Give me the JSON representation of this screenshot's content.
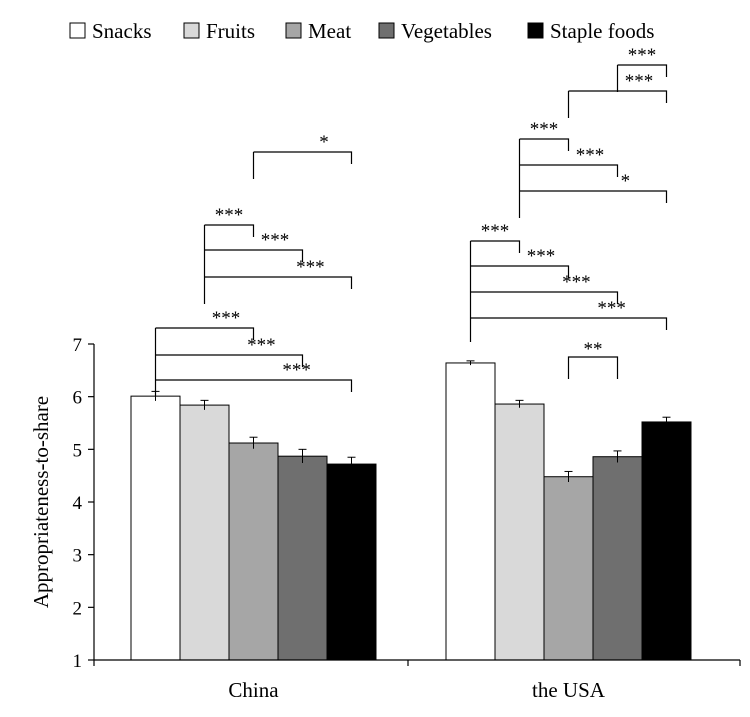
{
  "chart_data": {
    "type": "bar",
    "ylabel": "Appropriateness-to-share",
    "ylim": [
      1,
      7
    ],
    "yticks": [
      1,
      2,
      3,
      4,
      5,
      6,
      7
    ],
    "grid": false,
    "legend_position": "top",
    "categories": [
      "China",
      "the USA"
    ],
    "series": [
      {
        "name": "Snacks",
        "color": "#ffffff",
        "values": [
          6.01,
          6.64
        ],
        "errors": [
          0.09,
          0.04
        ]
      },
      {
        "name": "Fruits",
        "color": "#d9d9d9",
        "values": [
          5.84,
          5.86
        ],
        "errors": [
          0.09,
          0.07
        ]
      },
      {
        "name": "Meat",
        "color": "#a6a6a6",
        "values": [
          5.12,
          4.48
        ],
        "errors": [
          0.11,
          0.1
        ]
      },
      {
        "name": "Vegetables",
        "color": "#6f6f6f",
        "values": [
          4.87,
          4.86
        ],
        "errors": [
          0.13,
          0.11
        ]
      },
      {
        "name": "Staple foods",
        "color": "#000000",
        "values": [
          4.72,
          5.52
        ],
        "errors": [
          0.13,
          0.09
        ]
      }
    ],
    "significance": [
      {
        "group": 0,
        "from": 0,
        "to": 2,
        "label": "***"
      },
      {
        "group": 0,
        "from": 0,
        "to": 3,
        "label": "***"
      },
      {
        "group": 0,
        "from": 0,
        "to": 4,
        "label": "***"
      },
      {
        "group": 0,
        "from": 1,
        "to": 2,
        "label": "***"
      },
      {
        "group": 0,
        "from": 1,
        "to": 3,
        "label": "***"
      },
      {
        "group": 0,
        "from": 1,
        "to": 4,
        "label": "***"
      },
      {
        "group": 0,
        "from": 2,
        "to": 4,
        "label": "*"
      },
      {
        "group": 1,
        "from": 0,
        "to": 1,
        "label": "***"
      },
      {
        "group": 1,
        "from": 0,
        "to": 2,
        "label": "***"
      },
      {
        "group": 1,
        "from": 0,
        "to": 3,
        "label": "***"
      },
      {
        "group": 1,
        "from": 0,
        "to": 4,
        "label": "***"
      },
      {
        "group": 1,
        "from": 1,
        "to": 2,
        "label": "***"
      },
      {
        "group": 1,
        "from": 1,
        "to": 3,
        "label": "***"
      },
      {
        "group": 1,
        "from": 1,
        "to": 4,
        "label": "*"
      },
      {
        "group": 1,
        "from": 2,
        "to": 4,
        "label": "***"
      },
      {
        "group": 1,
        "from": 3,
        "to": 4,
        "label": "***"
      },
      {
        "group": 1,
        "from": 2,
        "to": 3,
        "label": "**"
      }
    ]
  }
}
